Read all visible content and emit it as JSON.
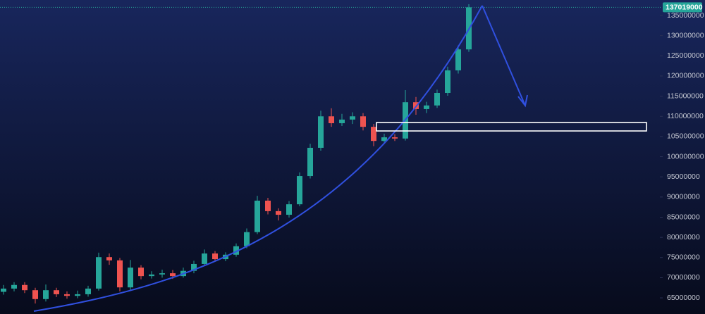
{
  "chart_data": {
    "type": "candlestick",
    "categories": [
      null,
      null,
      null,
      null,
      null,
      null,
      null,
      null,
      null,
      null,
      null,
      null,
      null,
      null,
      null,
      null,
      null,
      null,
      null,
      null,
      null,
      null,
      null,
      null,
      null,
      null,
      null,
      null,
      null,
      null,
      null,
      null,
      null,
      null,
      null,
      null,
      null,
      null,
      null,
      null,
      null,
      null,
      null,
      null,
      null
    ],
    "open": [
      66500000.0,
      67300000.0,
      68200000.0,
      66900000.0,
      64700000.0,
      66900000.0,
      65900000.0,
      65500000.0,
      65900000.0,
      67300000.0,
      75100000.0,
      74300000.0,
      67600000.0,
      72500000.0,
      70400000.0,
      70800000.0,
      71100000.0,
      70400000.0,
      71700000.0,
      73400000.0,
      76000000.0,
      74600000.0,
      75700000.0,
      77800000.0,
      81300000.0,
      89100000.0,
      86500000.0,
      85600000.0,
      88200000.0,
      95200000.0,
      102200000.0,
      110000000.0,
      108300000.0,
      109200000.0,
      110000000.0,
      107400000.0,
      103900000.0,
      104800000.0,
      104500000.0,
      113500000.0,
      111800000.0,
      112700000.0,
      115800000.0,
      121400000.0,
      126600000.0
    ],
    "high": [
      68200000.0,
      68900000.0,
      68900000.0,
      67500000.0,
      68300000.0,
      67500000.0,
      66600000.0,
      66800000.0,
      68000000.0,
      76200000.0,
      76000000.0,
      74900000.0,
      74400000.0,
      73100000.0,
      71600000.0,
      72000000.0,
      71900000.0,
      72500000.0,
      74200000.0,
      77000000.0,
      76600000.0,
      76300000.0,
      78500000.0,
      82200000.0,
      90300000.0,
      89800000.0,
      87200000.0,
      89000000.0,
      96100000.0,
      103200000.0,
      111400000.0,
      112000000.0,
      110600000.0,
      111000000.0,
      110800000.0,
      108100000.0,
      105700000.0,
      105600000.0,
      116500000.0,
      114800000.0,
      113600000.0,
      116600000.0,
      122300000.0,
      127600000.0,
      137800000.0
    ],
    "low": [
      65800000.0,
      66600000.0,
      66200000.0,
      63600000.0,
      64100000.0,
      65200000.0,
      64800000.0,
      64900000.0,
      65300000.0,
      66800000.0,
      73200000.0,
      66600000.0,
      67000000.0,
      69600000.0,
      69800000.0,
      70000000.0,
      69700000.0,
      70000000.0,
      71100000.0,
      72900000.0,
      74000000.0,
      74100000.0,
      75200000.0,
      77300000.0,
      80800000.0,
      85700000.0,
      84200000.0,
      84900000.0,
      87700000.0,
      94600000.0,
      101500000.0,
      107400000.0,
      107600000.0,
      108100000.0,
      106500000.0,
      102600000.0,
      103200000.0,
      103900000.0,
      104000000.0,
      110400000.0,
      110800000.0,
      112100000.0,
      115100000.0,
      120600000.0,
      126000000.0
    ],
    "close": [
      67300000.0,
      68200000.0,
      66900000.0,
      64700000.0,
      66900000.0,
      65900000.0,
      65500000.0,
      65900000.0,
      67300000.0,
      75100000.0,
      74300000.0,
      67600000.0,
      72500000.0,
      70400000.0,
      70800000.0,
      71100000.0,
      70400000.0,
      71700000.0,
      73400000.0,
      76000000.0,
      74600000.0,
      75700000.0,
      77800000.0,
      81300000.0,
      89100000.0,
      86500000.0,
      85600000.0,
      88200000.0,
      95200000.0,
      102200000.0,
      110000000.0,
      108300000.0,
      109200000.0,
      110000000.0,
      107400000.0,
      103900000.0,
      104800000.0,
      104500000.0,
      113500000.0,
      111800000.0,
      112700000.0,
      115800000.0,
      121400000.0,
      126600000.0,
      137019000
    ],
    "up_color": "#26a69a",
    "down_color": "#ef5350",
    "last_price": 137019000,
    "ylim": [
      61000000,
      138840000
    ],
    "yticks": [
      65000000,
      70000000,
      75000000,
      80000000,
      85000000,
      90000000,
      95000000,
      100000000,
      105000000,
      110000000,
      115000000,
      120000000,
      125000000,
      130000000,
      135000000
    ]
  }
}
